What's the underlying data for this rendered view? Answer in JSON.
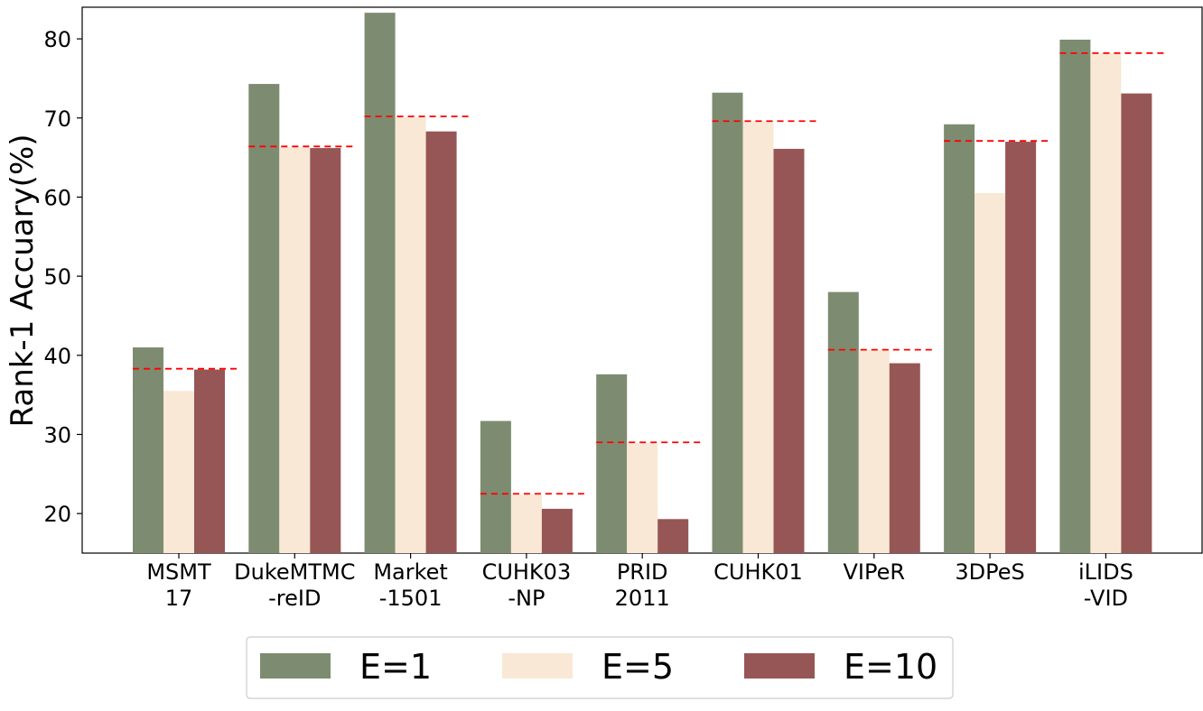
{
  "chart_data": {
    "type": "bar",
    "ylabel": "Rank-1 Accuary(%)",
    "xlabel": "",
    "title": "",
    "ylim": [
      15,
      84
    ],
    "yticks": [
      20,
      30,
      40,
      50,
      60,
      70,
      80
    ],
    "categories": [
      [
        "MSMT",
        "17"
      ],
      [
        "DukeMTMC",
        "-reID"
      ],
      [
        "Market",
        "-1501"
      ],
      [
        "CUHK03",
        "-NP"
      ],
      [
        "PRID",
        "2011"
      ],
      [
        "CUHK01"
      ],
      [
        "VIPeR"
      ],
      [
        "3DPeS"
      ],
      [
        "iLIDS",
        "-VID"
      ]
    ],
    "series": [
      {
        "name": "E=1",
        "color": "#7d8c70",
        "values": [
          41.0,
          74.3,
          83.3,
          31.7,
          37.6,
          73.2,
          48.0,
          69.2,
          79.9
        ]
      },
      {
        "name": "E=5",
        "color": "#f9e8d5",
        "values": [
          35.5,
          66.3,
          70.1,
          22.4,
          28.9,
          69.6,
          40.7,
          60.5,
          78.2
        ]
      },
      {
        "name": "E=10",
        "color": "#965655",
        "values": [
          38.2,
          66.2,
          68.3,
          20.6,
          19.3,
          66.1,
          39.0,
          67.0,
          73.1
        ]
      }
    ],
    "reference_lines": [
      38.3,
      66.4,
      70.2,
      22.5,
      29.0,
      69.6,
      40.7,
      67.1,
      78.2
    ],
    "reference_line_color": "#ff0000",
    "grid": false,
    "legend_position": "bottom-center"
  }
}
